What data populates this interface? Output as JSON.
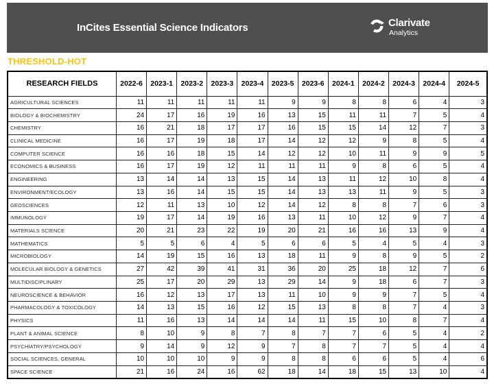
{
  "header": {
    "title": "InCites Essential Science Indicators",
    "brand_name": "Clarivate",
    "brand_sub": "Analytics"
  },
  "threshold_label": "THRESHOLD-HOT",
  "colors": {
    "header_bg": "#4f4f50",
    "threshold_text": "#ffc20e",
    "table_border": "#1d1d1d"
  },
  "chart_data": {
    "type": "table",
    "title": "THRESHOLD-HOT",
    "row_header": "RESEARCH FIELDS",
    "columns": [
      "2022-6",
      "2023-1",
      "2023-2",
      "2023-3",
      "2023-4",
      "2023-5",
      "2023-6",
      "2024-1",
      "2024-2",
      "2024-3",
      "2024-4",
      "2024-5"
    ],
    "rows": [
      {
        "field": "AGRICULTURAL SCIENCES",
        "values": [
          11,
          11,
          11,
          11,
          11,
          9,
          9,
          8,
          8,
          6,
          4,
          3
        ]
      },
      {
        "field": "BIOLOGY & BIOCHEMISTRY",
        "values": [
          24,
          17,
          16,
          19,
          16,
          13,
          15,
          11,
          11,
          7,
          5,
          4
        ]
      },
      {
        "field": "CHEMISTRY",
        "values": [
          16,
          21,
          18,
          17,
          17,
          16,
          15,
          15,
          14,
          12,
          7,
          3
        ]
      },
      {
        "field": "CLINICAL MEDICINE",
        "values": [
          16,
          17,
          19,
          18,
          17,
          14,
          12,
          12,
          9,
          8,
          5,
          4
        ]
      },
      {
        "field": "COMPUTER SCIENCE",
        "values": [
          16,
          16,
          18,
          15,
          14,
          12,
          12,
          10,
          11,
          9,
          9,
          5
        ]
      },
      {
        "field": "ECONOMICS & BUSINESS",
        "values": [
          16,
          17,
          19,
          12,
          11,
          11,
          11,
          9,
          8,
          6,
          5,
          4
        ]
      },
      {
        "field": "ENGINEERING",
        "values": [
          13,
          14,
          14,
          13,
          15,
          14,
          13,
          11,
          12,
          10,
          8,
          4
        ]
      },
      {
        "field": "ENVIRONMENT/ECOLOGY",
        "values": [
          13,
          16,
          14,
          15,
          15,
          14,
          13,
          13,
          11,
          9,
          5,
          3
        ]
      },
      {
        "field": "GEOSCIENCES",
        "values": [
          12,
          11,
          13,
          10,
          12,
          14,
          12,
          8,
          8,
          7,
          6,
          3
        ]
      },
      {
        "field": "IMMUNOLOGY",
        "values": [
          19,
          17,
          14,
          19,
          16,
          13,
          11,
          10,
          12,
          9,
          7,
          4
        ]
      },
      {
        "field": "MATERIALS SCIENCE",
        "values": [
          20,
          21,
          23,
          22,
          19,
          20,
          21,
          16,
          16,
          13,
          9,
          4
        ]
      },
      {
        "field": "MATHEMATICS",
        "values": [
          5,
          5,
          6,
          4,
          5,
          6,
          6,
          5,
          4,
          5,
          4,
          3
        ]
      },
      {
        "field": "MICROBIOLOGY",
        "values": [
          14,
          19,
          15,
          16,
          13,
          18,
          11,
          9,
          8,
          9,
          5,
          2
        ]
      },
      {
        "field": "MOLECULAR BIOLOGY & GENETICS",
        "values": [
          27,
          42,
          39,
          41,
          31,
          36,
          20,
          25,
          18,
          12,
          7,
          6
        ]
      },
      {
        "field": "MULTIDISCIPLINARY",
        "values": [
          25,
          17,
          20,
          29,
          13,
          29,
          14,
          9,
          18,
          6,
          7,
          3
        ]
      },
      {
        "field": "NEUROSCIENCE & BEHAVIOR",
        "values": [
          16,
          12,
          13,
          17,
          13,
          11,
          10,
          9,
          9,
          7,
          5,
          4
        ]
      },
      {
        "field": "PHARMACOLOGY & TOXICOLOGY",
        "values": [
          14,
          13,
          15,
          16,
          12,
          15,
          13,
          8,
          8,
          7,
          4,
          3
        ]
      },
      {
        "field": "PHYSICS",
        "values": [
          11,
          16,
          13,
          14,
          14,
          14,
          11,
          15,
          10,
          8,
          7,
          4
        ]
      },
      {
        "field": "PLANT & ANIMAL SCIENCE",
        "values": [
          8,
          10,
          9,
          8,
          7,
          8,
          7,
          7,
          6,
          5,
          4,
          2
        ]
      },
      {
        "field": "PSYCHIATRY/PSYCHOLOGY",
        "values": [
          9,
          14,
          9,
          12,
          9,
          7,
          8,
          7,
          7,
          5,
          4,
          4
        ]
      },
      {
        "field": "SOCIAL SCIENCES, GENERAL",
        "values": [
          10,
          10,
          10,
          9,
          9,
          8,
          8,
          6,
          6,
          5,
          4,
          6
        ]
      },
      {
        "field": "SPACE SCIENCE",
        "values": [
          21,
          16,
          24,
          16,
          62,
          18,
          14,
          18,
          15,
          13,
          10,
          4
        ]
      }
    ]
  }
}
